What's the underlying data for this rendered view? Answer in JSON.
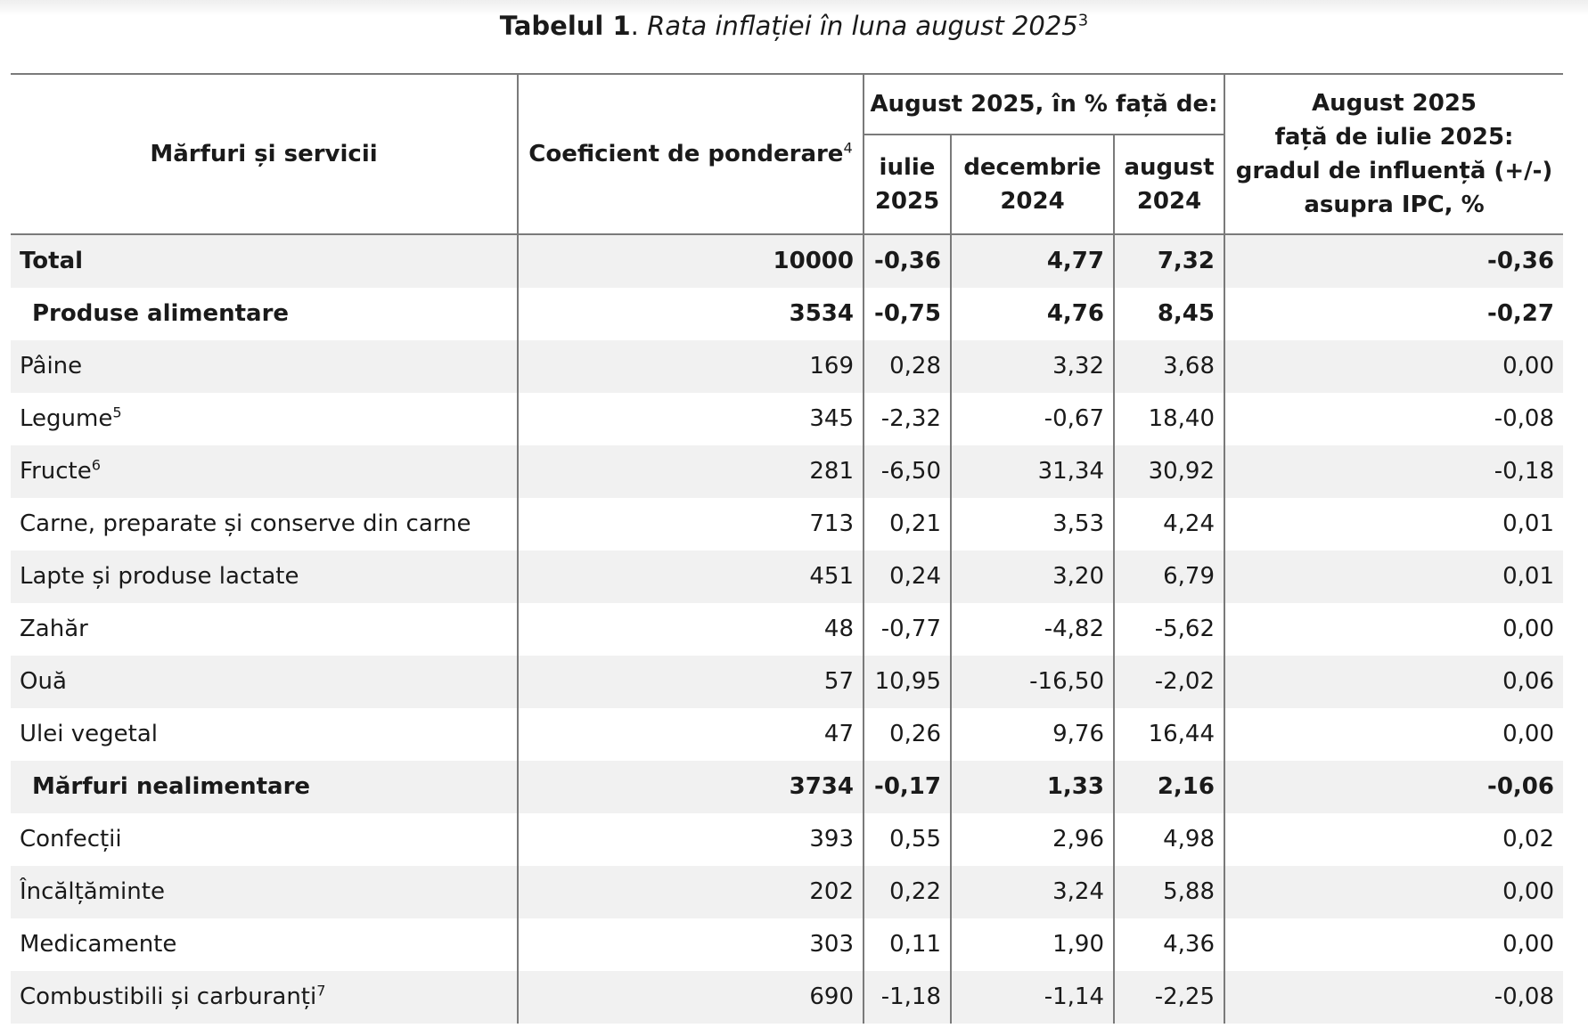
{
  "title": {
    "bold": "Tabelul 1",
    "separator": ". ",
    "italic": "Rata inflației în luna august 2025",
    "sup": "3"
  },
  "header": {
    "col_name": "Mărfuri și servicii",
    "col_weight": "Coeficient de ponderare",
    "col_weight_sup": "4",
    "group_label": "August 2025, în % față de:",
    "sub_1_line1": "iulie",
    "sub_1_line2": "2025",
    "sub_2_line1": "decembrie",
    "sub_2_line2": "2024",
    "sub_3_line1": "august",
    "sub_3_line2": "2024",
    "col_infl_line1": "August 2025",
    "col_infl_line2": "față de iulie 2025:",
    "col_infl_line3": "gradul de influență  (+/-)",
    "col_infl_line4": "asupra IPC, %"
  },
  "rows": [
    {
      "name": "Total",
      "sup": "",
      "weight": "10000",
      "jul": "-0,36",
      "dec": "4,77",
      "aug": "7,32",
      "infl": "-0,36",
      "bold": true,
      "indent": false
    },
    {
      "name": "Produse alimentare",
      "sup": "",
      "weight": "3534",
      "jul": "-0,75",
      "dec": "4,76",
      "aug": "8,45",
      "infl": "-0,27",
      "bold": true,
      "indent": true
    },
    {
      "name": "Pâine",
      "sup": "",
      "weight": "169",
      "jul": "0,28",
      "dec": "3,32",
      "aug": "3,68",
      "infl": "0,00",
      "bold": false,
      "indent": false
    },
    {
      "name": "Legume",
      "sup": "5",
      "weight": "345",
      "jul": "-2,32",
      "dec": "-0,67",
      "aug": "18,40",
      "infl": "-0,08",
      "bold": false,
      "indent": false
    },
    {
      "name": "Fructe",
      "sup": "6",
      "weight": "281",
      "jul": "-6,50",
      "dec": "31,34",
      "aug": "30,92",
      "infl": "-0,18",
      "bold": false,
      "indent": false
    },
    {
      "name": "Carne, preparate și conserve din carne",
      "sup": "",
      "weight": "713",
      "jul": "0,21",
      "dec": "3,53",
      "aug": "4,24",
      "infl": "0,01",
      "bold": false,
      "indent": false
    },
    {
      "name": "Lapte și produse lactate",
      "sup": "",
      "weight": "451",
      "jul": "0,24",
      "dec": "3,20",
      "aug": "6,79",
      "infl": "0,01",
      "bold": false,
      "indent": false
    },
    {
      "name": "Zahăr",
      "sup": "",
      "weight": "48",
      "jul": "-0,77",
      "dec": "-4,82",
      "aug": "-5,62",
      "infl": "0,00",
      "bold": false,
      "indent": false
    },
    {
      "name": "Ouă",
      "sup": "",
      "weight": "57",
      "jul": "10,95",
      "dec": "-16,50",
      "aug": "-2,02",
      "infl": "0,06",
      "bold": false,
      "indent": false
    },
    {
      "name": "Ulei vegetal",
      "sup": "",
      "weight": "47",
      "jul": "0,26",
      "dec": "9,76",
      "aug": "16,44",
      "infl": "0,00",
      "bold": false,
      "indent": false
    },
    {
      "name": "Mărfuri nealimentare",
      "sup": "",
      "weight": "3734",
      "jul": "-0,17",
      "dec": "1,33",
      "aug": "2,16",
      "infl": "-0,06",
      "bold": true,
      "indent": true
    },
    {
      "name": "Confecții",
      "sup": "",
      "weight": "393",
      "jul": "0,55",
      "dec": "2,96",
      "aug": "4,98",
      "infl": "0,02",
      "bold": false,
      "indent": false
    },
    {
      "name": "Încălțăminte",
      "sup": "",
      "weight": "202",
      "jul": "0,22",
      "dec": "3,24",
      "aug": "5,88",
      "infl": "0,00",
      "bold": false,
      "indent": false
    },
    {
      "name": "Medicamente",
      "sup": "",
      "weight": "303",
      "jul": "0,11",
      "dec": "1,90",
      "aug": "4,36",
      "infl": "0,00",
      "bold": false,
      "indent": false
    },
    {
      "name": "Combustibili și carburanți",
      "sup": "7",
      "weight": "690",
      "jul": "-1,18",
      "dec": "-1,14",
      "aug": "-2,25",
      "infl": "-0,08",
      "bold": false,
      "indent": false
    }
  ]
}
